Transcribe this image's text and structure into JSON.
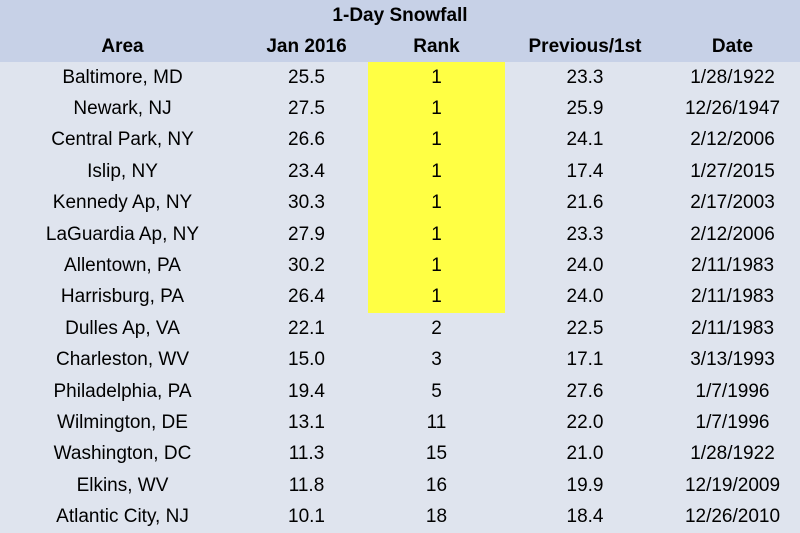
{
  "table": {
    "title": "1-Day Snowfall",
    "header": [
      "Area",
      "Jan 2016",
      "Rank",
      "Previous/1st",
      "Date"
    ],
    "rows": [
      [
        "Baltimore, MD",
        "25.5",
        "1",
        "23.3",
        "1/28/1922"
      ],
      [
        "Newark, NJ",
        "27.5",
        "1",
        "25.9",
        "12/26/1947"
      ],
      [
        "Central Park, NY",
        "26.6",
        "1",
        "24.1",
        "2/12/2006"
      ],
      [
        "Islip, NY",
        "23.4",
        "1",
        "17.4",
        "1/27/2015"
      ],
      [
        "Kennedy Ap, NY",
        "30.3",
        "1",
        "21.6",
        "2/17/2003"
      ],
      [
        "LaGuardia Ap, NY",
        "27.9",
        "1",
        "23.3",
        "2/12/2006"
      ],
      [
        "Allentown, PA",
        "30.2",
        "1",
        "24.0",
        "2/11/1983"
      ],
      [
        "Harrisburg, PA",
        "26.4",
        "1",
        "24.0",
        "2/11/1983"
      ],
      [
        "Dulles Ap, VA",
        "22.1",
        "2",
        "22.5",
        "2/11/1983"
      ],
      [
        "Charleston, WV",
        "15.0",
        "3",
        "17.1",
        "3/13/1993"
      ],
      [
        "Philadelphia, PA",
        "19.4",
        "5",
        "27.6",
        "1/7/1996"
      ],
      [
        "Wilmington, DE",
        "13.1",
        "11",
        "22.0",
        "1/7/1996"
      ],
      [
        "Washington, DC",
        "11.3",
        "15",
        "21.0",
        "1/28/1922"
      ],
      [
        "Elkins, WV",
        "11.8",
        "16",
        "19.9",
        "12/19/2009"
      ],
      [
        "Atlantic City, NJ",
        "10.1",
        "18",
        "18.4",
        "12/26/2010"
      ]
    ]
  }
}
